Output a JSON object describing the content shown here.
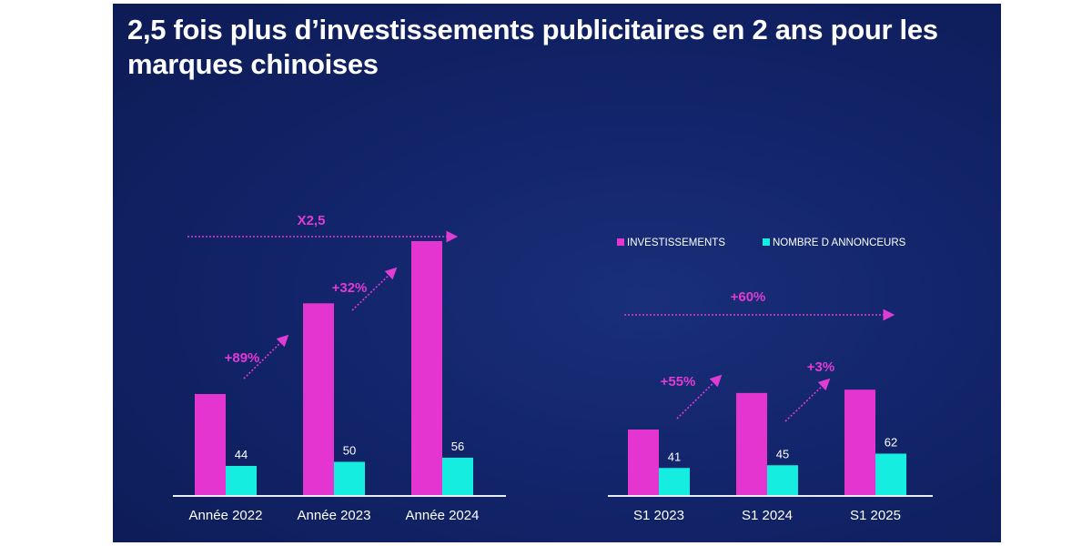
{
  "title": "2,5 fois plus d’investissements publicitaires en 2 ans pour les marques chinoises",
  "colors": {
    "investissements": "#e535d0",
    "annonceurs": "#14ede0",
    "annotation": "#e03bd2",
    "background": "#12246a"
  },
  "chart_data": [
    {
      "type": "bar",
      "categories": [
        "Année 2022",
        "Année 2023",
        "Année 2024"
      ],
      "series": [
        {
          "name": "INVESTISSEMENTS",
          "values": [
            100,
            189,
            250
          ],
          "note": "relative index, 2022 = 100 (unlabeled bars)"
        },
        {
          "name": "NOMBRE D ANNONCEURS",
          "values": [
            44,
            50,
            56
          ],
          "labels": [
            "44",
            "50",
            "56"
          ]
        }
      ],
      "annotations": [
        {
          "text": "+89%",
          "from": "Année 2022",
          "to": "Année 2023"
        },
        {
          "text": "+32%",
          "from": "Année 2023",
          "to": "Année 2024"
        },
        {
          "text": "X2,5",
          "from": "Année 2022",
          "to": "Année 2024"
        }
      ]
    },
    {
      "type": "bar",
      "categories": [
        "S1 2023",
        "S1 2024",
        "S1 2025"
      ],
      "series": [
        {
          "name": "INVESTISSEMENTS",
          "values": [
            100,
            155,
            160
          ],
          "note": "relative index, S1 2023 = 100 (unlabeled bars)"
        },
        {
          "name": "NOMBRE D ANNONCEURS",
          "values": [
            41,
            45,
            62
          ],
          "labels": [
            "41",
            "45",
            "62"
          ]
        }
      ],
      "annotations": [
        {
          "text": "+55%",
          "from": "S1 2023",
          "to": "S1 2024"
        },
        {
          "text": "+3%",
          "from": "S1 2024",
          "to": "S1 2025"
        },
        {
          "text": "+60%",
          "from": "S1 2023",
          "to": "S1 2025"
        }
      ],
      "legend": {
        "position": "top-right",
        "entries": [
          "INVESTISSEMENTS",
          "NOMBRE D ANNONCEURS"
        ]
      }
    }
  ]
}
